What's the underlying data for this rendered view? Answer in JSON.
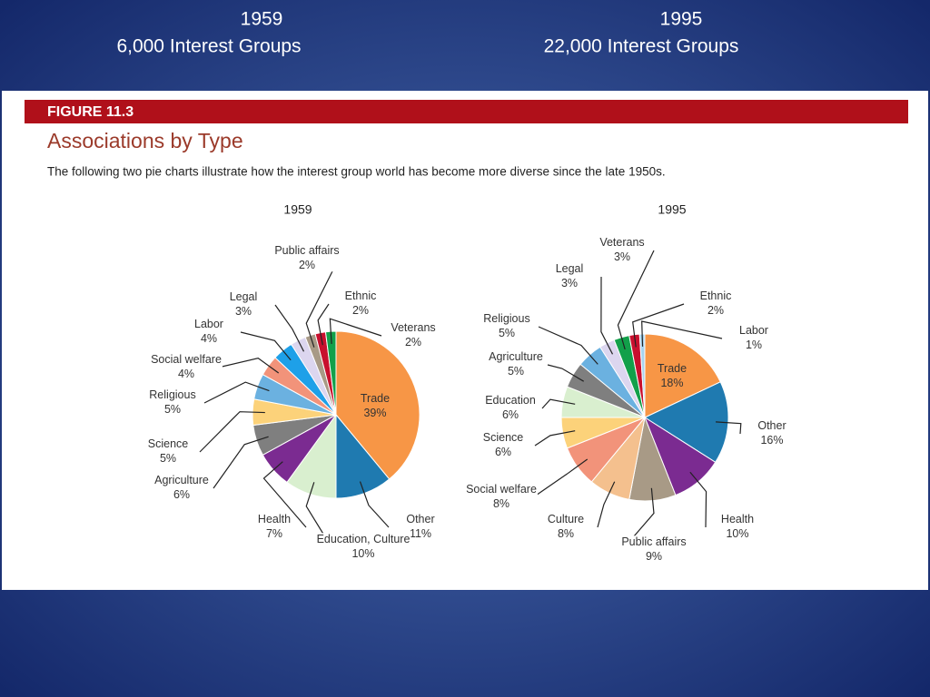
{
  "slide": {
    "left": {
      "year": "1959",
      "count": "6,000 Interest Groups"
    },
    "right": {
      "year": "1995",
      "count": "22,000 Interest Groups"
    }
  },
  "figure": {
    "number": "FIGURE 11.3",
    "title": "Associations by Type",
    "description": "The following two pie charts illustrate how the interest group world has become more diverse since the late 1950s."
  },
  "chart_data": [
    {
      "type": "pie",
      "title": "1959",
      "categories": [
        "Trade",
        "Other",
        "Education, Culture",
        "Health",
        "Agriculture",
        "Science",
        "Religious",
        "Social welfare",
        "Labor",
        "Legal",
        "Public affairs",
        "Ethnic",
        "Veterans"
      ],
      "values": [
        39,
        11,
        10,
        7,
        6,
        5,
        5,
        4,
        4,
        3,
        2,
        2,
        2
      ],
      "value_labels": [
        "39%",
        "11%",
        "10%",
        "7%",
        "6%",
        "5%",
        "5%",
        "4%",
        "4%",
        "3%",
        "2%",
        "2%",
        "2%"
      ],
      "colors": [
        "#f79646",
        "#1f7ab0",
        "#d9efcf",
        "#7b2b91",
        "#7f7f7f",
        "#fcd27a",
        "#6bb1e0",
        "#f2937a",
        "#1ea0e8",
        "#dcd6ef",
        "#a89a86",
        "#c8102e",
        "#12a04a"
      ]
    },
    {
      "type": "pie",
      "title": "1995",
      "categories": [
        "Trade",
        "Other",
        "Health",
        "Public affairs",
        "Culture",
        "Social welfare",
        "Science",
        "Education",
        "Agriculture",
        "Religious",
        "Legal",
        "Veterans",
        "Ethnic",
        "Labor"
      ],
      "values": [
        18,
        16,
        10,
        9,
        8,
        8,
        6,
        6,
        5,
        5,
        3,
        3,
        2,
        1
      ],
      "value_labels": [
        "18%",
        "16%",
        "10%",
        "9%",
        "8%",
        "8%",
        "6%",
        "6%",
        "5%",
        "5%",
        "3%",
        "3%",
        "2%",
        "1%"
      ],
      "colors": [
        "#f79646",
        "#1f7ab0",
        "#7b2b91",
        "#a89a86",
        "#f4c08e",
        "#f2937a",
        "#fcd27a",
        "#d9efcf",
        "#7f7f7f",
        "#6bb1e0",
        "#dcd6ef",
        "#12a04a",
        "#c8102e",
        "#a8d4f0"
      ]
    }
  ]
}
